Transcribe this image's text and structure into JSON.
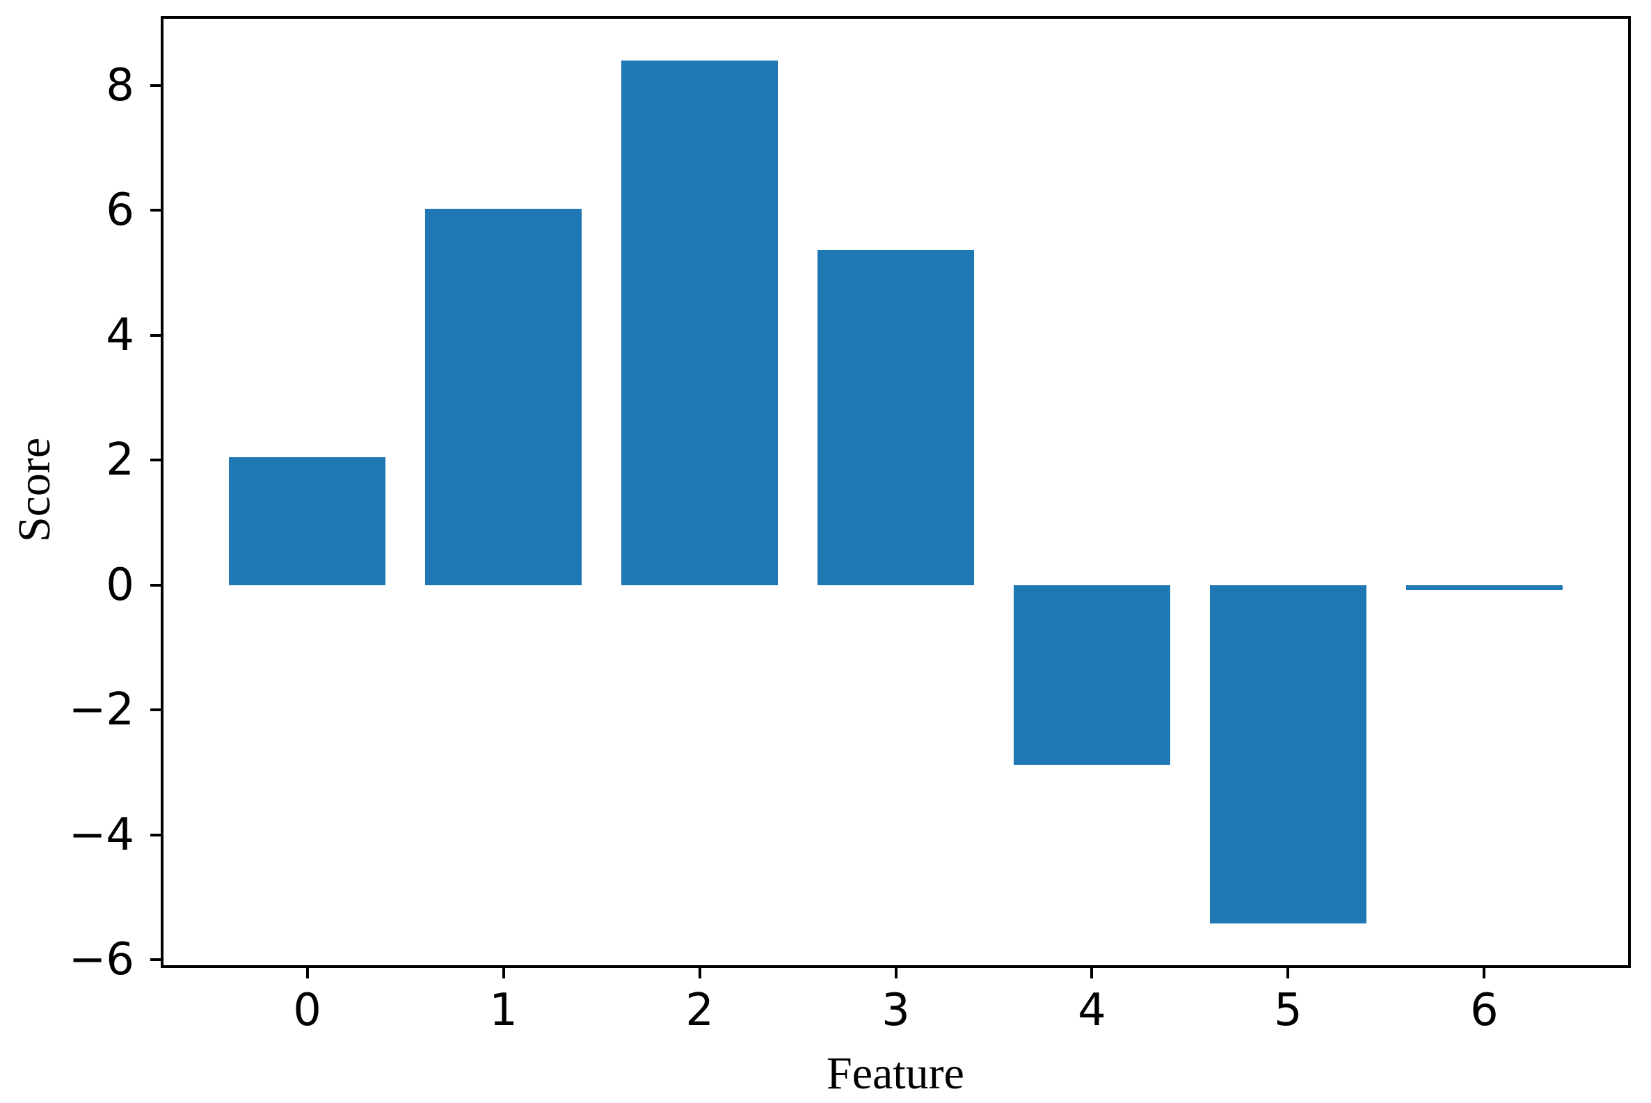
{
  "figure": {
    "background": "#ffffff"
  },
  "chart_data": {
    "type": "bar",
    "title": "",
    "xlabel": "Feature",
    "ylabel": "Score",
    "categories": [
      "0",
      "1",
      "2",
      "3",
      "4",
      "5",
      "6"
    ],
    "values": [
      2.05,
      6.02,
      8.4,
      5.37,
      -2.88,
      -5.42,
      -0.08
    ],
    "bar_color": "#1f77b4",
    "axis_color": "#000000",
    "bar_width": 0.8,
    "grid": false,
    "legend_position": "none",
    "xlim": [
      -0.74,
      6.74
    ],
    "ylim": [
      -6.11,
      9.09
    ],
    "yticks": [
      {
        "value": 8,
        "label": "8"
      },
      {
        "value": 6,
        "label": "6"
      },
      {
        "value": 4,
        "label": "4"
      },
      {
        "value": 2,
        "label": "2"
      },
      {
        "value": 0,
        "label": "0"
      },
      {
        "value": -2,
        "label": "−2"
      },
      {
        "value": -4,
        "label": "−4"
      },
      {
        "value": -6,
        "label": "−6"
      }
    ],
    "xticks": [
      {
        "value": 0,
        "label": "0"
      },
      {
        "value": 1,
        "label": "1"
      },
      {
        "value": 2,
        "label": "2"
      },
      {
        "value": 3,
        "label": "3"
      },
      {
        "value": 4,
        "label": "4"
      },
      {
        "value": 5,
        "label": "5"
      },
      {
        "value": 6,
        "label": "6"
      }
    ]
  }
}
